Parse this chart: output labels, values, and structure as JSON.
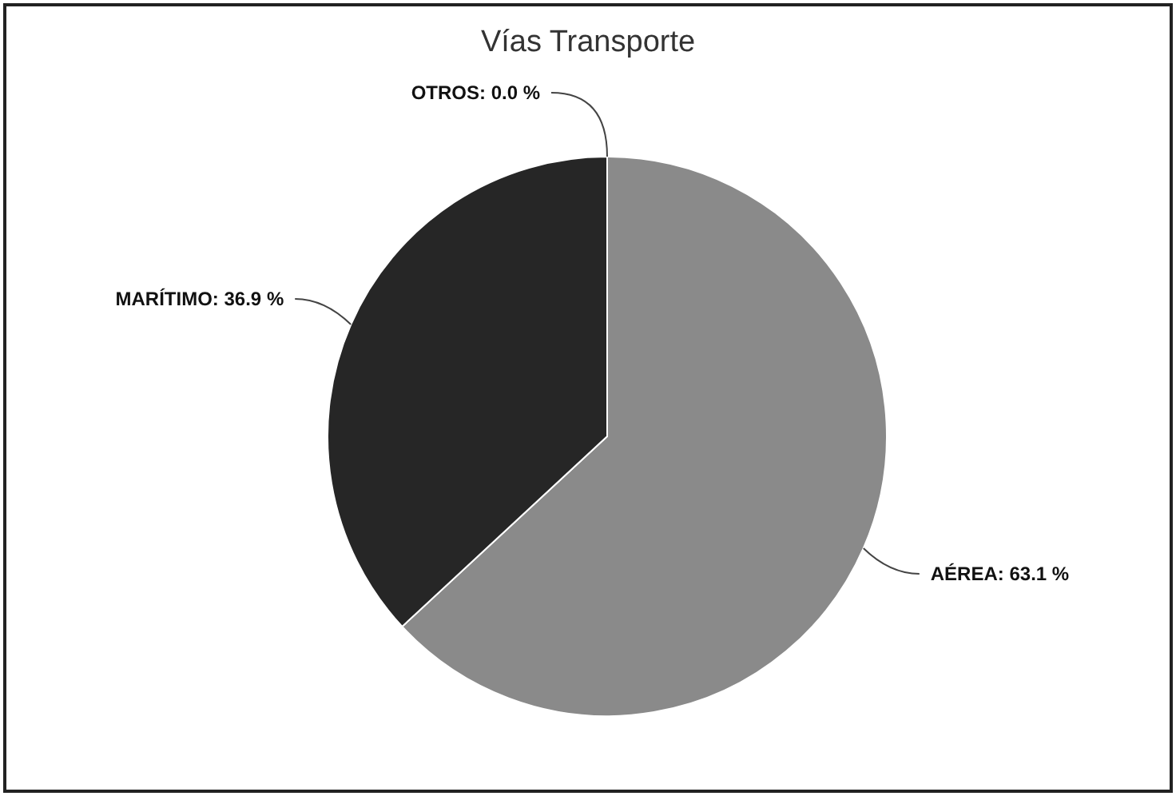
{
  "chart_data": {
    "type": "pie",
    "title": "Vías Transporte",
    "categories": [
      "AÉREA",
      "MARÍTIMO",
      "OTROS"
    ],
    "values": [
      63.1,
      36.9,
      0.0
    ],
    "colors": [
      "#8a8a8a",
      "#262626",
      "#111111"
    ],
    "value_labels": [
      ": 63.1 %",
      ": 36.9 %",
      ": 0.0 %"
    ]
  }
}
